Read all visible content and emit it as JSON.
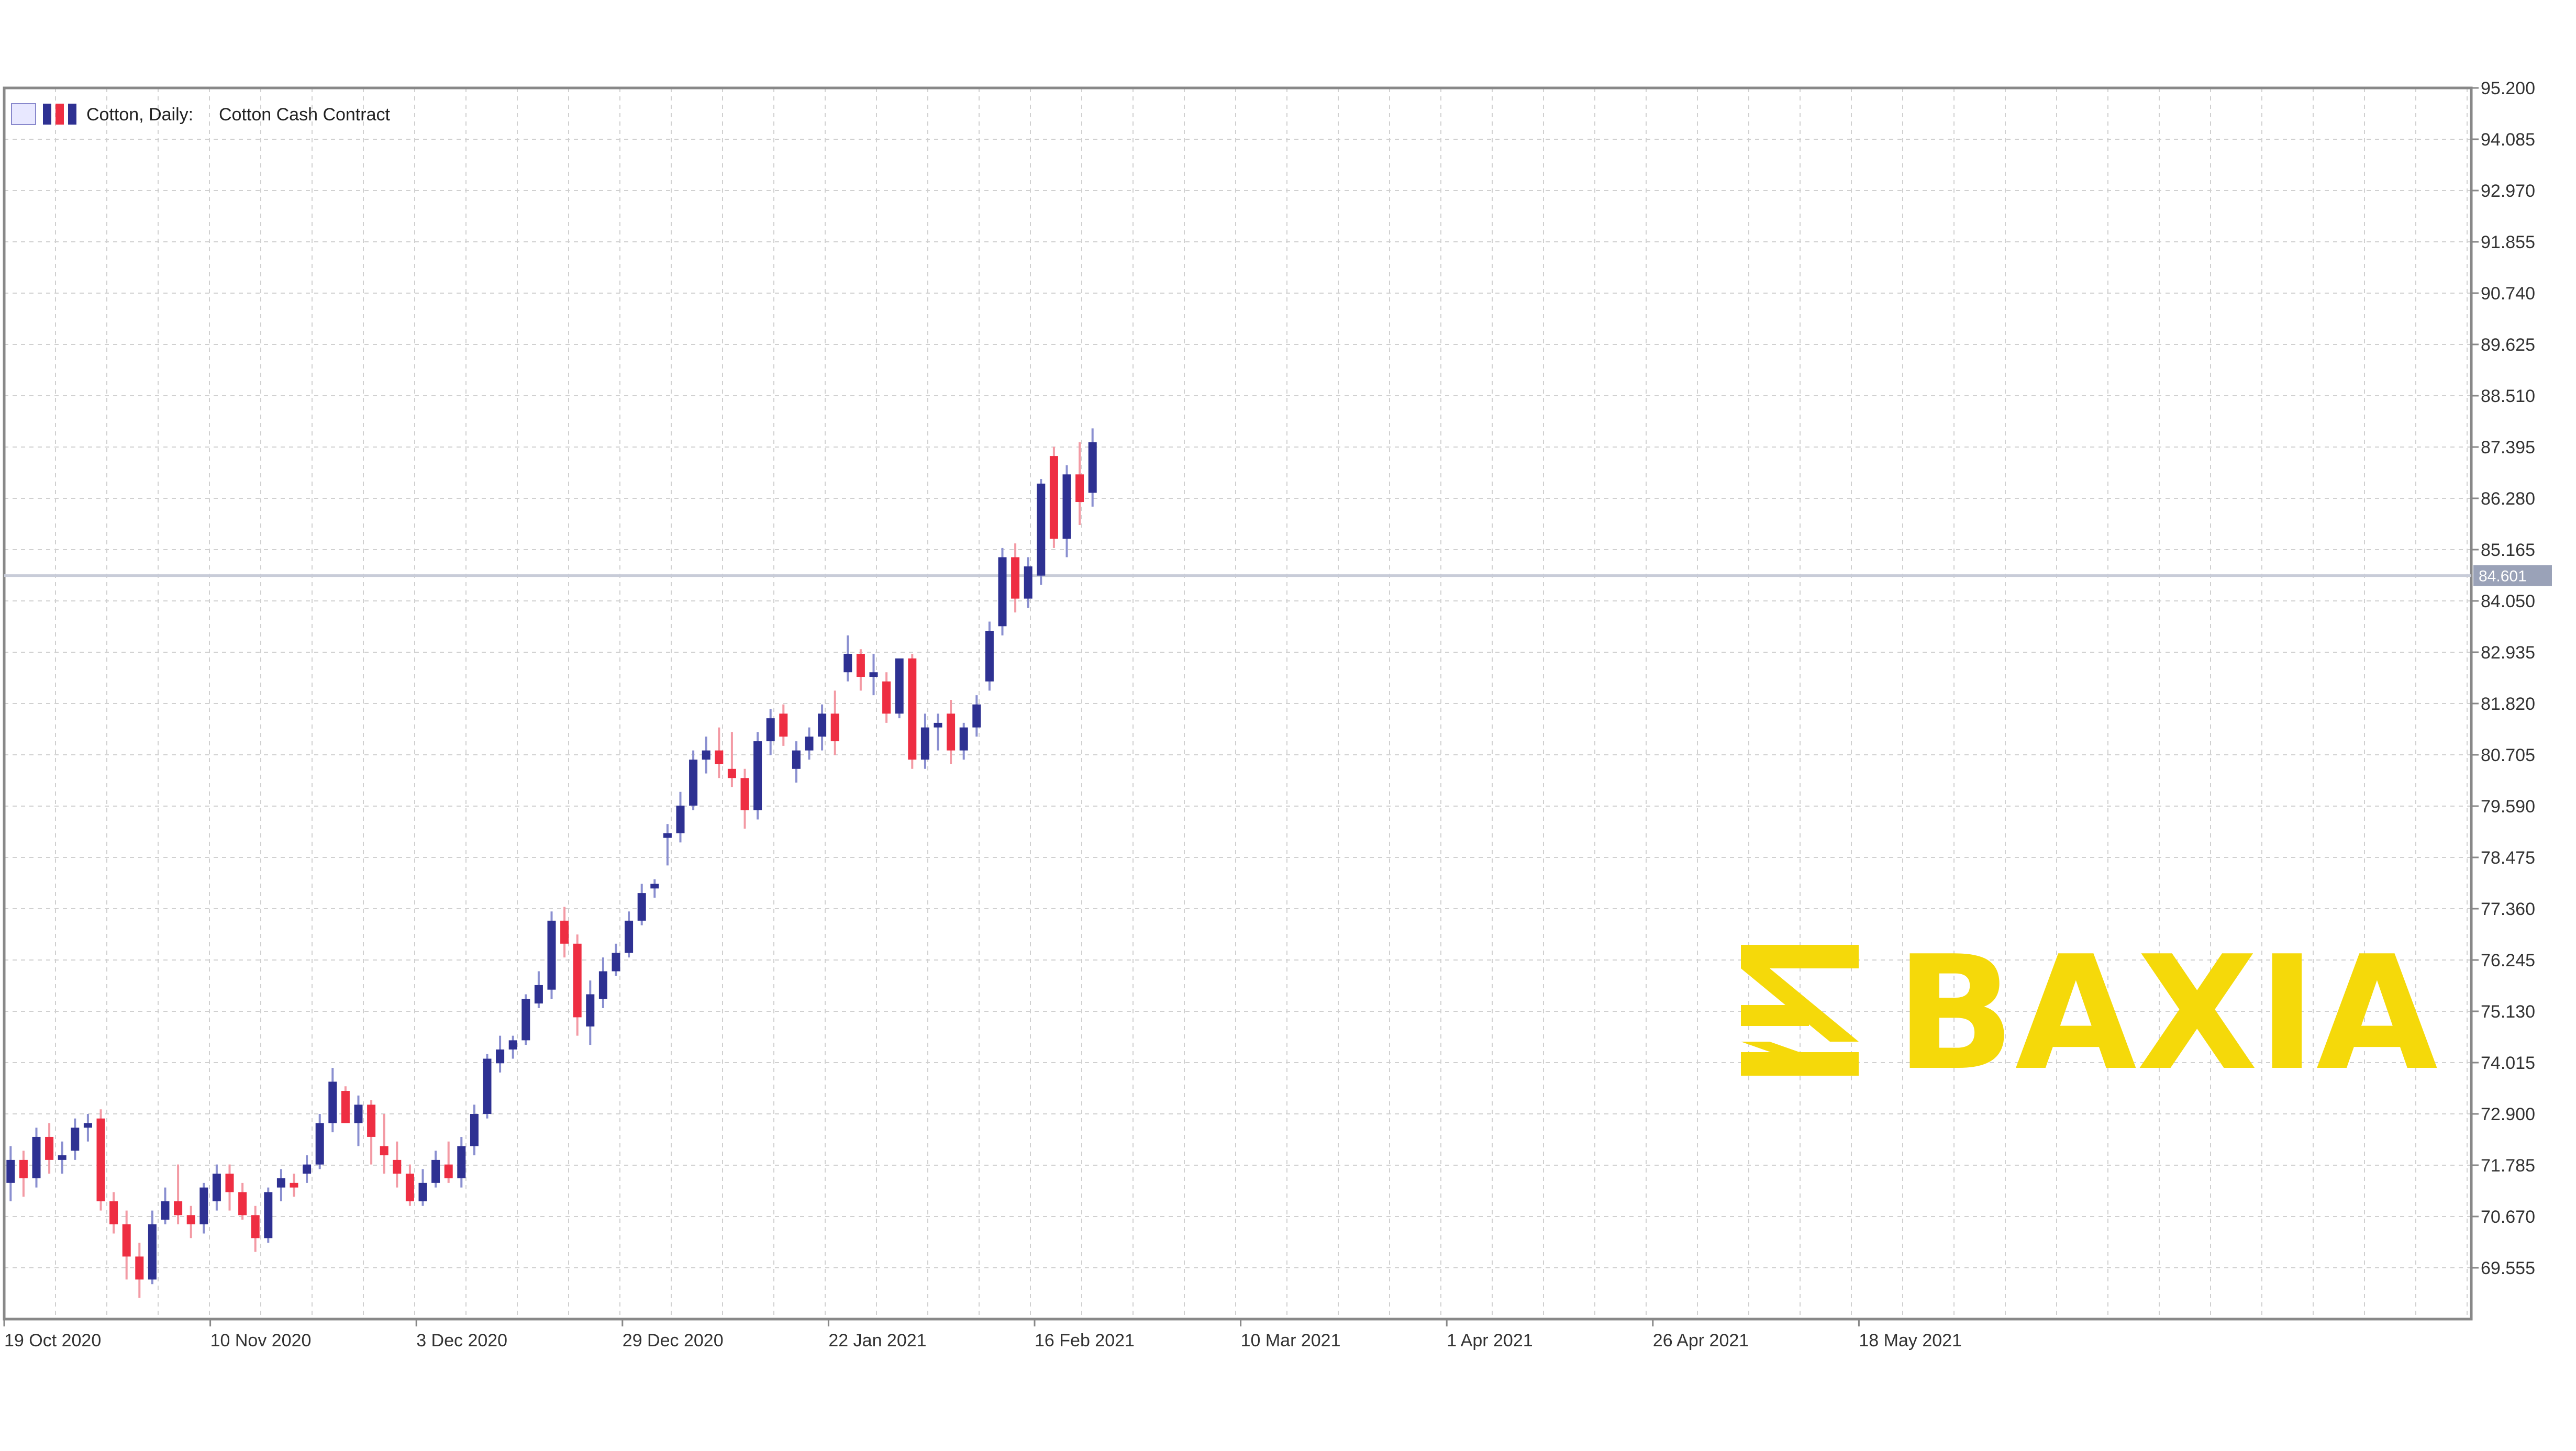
{
  "header": {
    "symbol_label": "Cotton, Daily:",
    "description": "Cotton Cash Contract"
  },
  "logo": {
    "text": "BAXIA",
    "icon": "baxia-logo-icon",
    "color": "#f5d90a"
  },
  "colors": {
    "bull": "#2e3192",
    "bear": "#ee2e42",
    "grid": "#d0d0d0",
    "axis": "#888888",
    "current_line": "#c8ccd8",
    "current_tag": "#9aa2b8"
  },
  "chart_data": {
    "type": "candlestick",
    "title": "Cotton, Daily: Cotton Cash Contract",
    "ylim": [
      68.5,
      95.2
    ],
    "y_ticks": [
      "95.200",
      "94.085",
      "92.970",
      "91.855",
      "90.740",
      "89.625",
      "88.510",
      "87.395",
      "86.280",
      "85.165",
      "84.050",
      "82.935",
      "81.820",
      "80.705",
      "79.590",
      "78.475",
      "77.360",
      "76.245",
      "75.130",
      "74.015",
      "72.900",
      "71.785",
      "70.670",
      "69.555"
    ],
    "x_labels": [
      {
        "label": "19 Oct 2020",
        "index": 0
      },
      {
        "label": "10 Nov 2020",
        "index": 16
      },
      {
        "label": "3 Dec 2020",
        "index": 32
      },
      {
        "label": "29 Dec 2020",
        "index": 48
      },
      {
        "label": "22 Jan 2021",
        "index": 64
      },
      {
        "label": "16 Feb 2021",
        "index": 80
      },
      {
        "label": "10 Mar 2021",
        "index": 96
      },
      {
        "label": "1 Apr 2021",
        "index": 112
      },
      {
        "label": "26 Apr 2021",
        "index": 128
      },
      {
        "label": "18 May 2021",
        "index": 144
      }
    ],
    "current_price": 84.601,
    "current_price_label": "84.601",
    "grid": true,
    "candles": [
      [
        71.4,
        72.2,
        71.0,
        71.9
      ],
      [
        71.9,
        72.1,
        71.1,
        71.5
      ],
      [
        71.5,
        72.6,
        71.3,
        72.4
      ],
      [
        72.4,
        72.7,
        71.6,
        71.9
      ],
      [
        71.9,
        72.3,
        71.6,
        72.0
      ],
      [
        72.1,
        72.8,
        71.9,
        72.6
      ],
      [
        72.6,
        72.9,
        72.3,
        72.7
      ],
      [
        72.8,
        73.0,
        70.8,
        71.0
      ],
      [
        71.0,
        71.2,
        70.3,
        70.5
      ],
      [
        70.5,
        70.8,
        69.3,
        69.8
      ],
      [
        69.8,
        70.1,
        68.9,
        69.3
      ],
      [
        69.3,
        70.8,
        69.2,
        70.5
      ],
      [
        70.6,
        71.3,
        70.5,
        71.0
      ],
      [
        71.0,
        71.8,
        70.5,
        70.7
      ],
      [
        70.7,
        70.9,
        70.2,
        70.5
      ],
      [
        70.5,
        71.4,
        70.3,
        71.3
      ],
      [
        71.0,
        71.8,
        70.8,
        71.6
      ],
      [
        71.6,
        71.8,
        70.8,
        71.2
      ],
      [
        71.2,
        71.4,
        70.6,
        70.7
      ],
      [
        70.7,
        70.9,
        69.9,
        70.2
      ],
      [
        70.2,
        71.3,
        70.1,
        71.2
      ],
      [
        71.3,
        71.7,
        71.0,
        71.5
      ],
      [
        71.4,
        71.6,
        71.1,
        71.3
      ],
      [
        71.6,
        72.0,
        71.4,
        71.8
      ],
      [
        71.8,
        72.9,
        71.7,
        72.7
      ],
      [
        72.7,
        73.9,
        72.5,
        73.6
      ],
      [
        73.4,
        73.5,
        72.8,
        72.7
      ],
      [
        72.7,
        73.3,
        72.2,
        73.1
      ],
      [
        73.1,
        73.2,
        71.8,
        72.4
      ],
      [
        72.2,
        72.9,
        71.6,
        72.0
      ],
      [
        71.9,
        72.3,
        71.3,
        71.6
      ],
      [
        71.6,
        71.8,
        70.9,
        71.0
      ],
      [
        71.0,
        71.7,
        70.9,
        71.4
      ],
      [
        71.4,
        72.1,
        71.3,
        71.9
      ],
      [
        71.8,
        72.3,
        71.4,
        71.5
      ],
      [
        71.5,
        72.4,
        71.3,
        72.2
      ],
      [
        72.2,
        73.1,
        72.0,
        72.9
      ],
      [
        72.9,
        74.2,
        72.8,
        74.1
      ],
      [
        74.0,
        74.6,
        73.8,
        74.3
      ],
      [
        74.3,
        74.6,
        74.1,
        74.5
      ],
      [
        74.5,
        75.5,
        74.4,
        75.4
      ],
      [
        75.3,
        76.0,
        75.2,
        75.7
      ],
      [
        75.6,
        77.3,
        75.4,
        77.1
      ],
      [
        77.1,
        77.4,
        76.3,
        76.6
      ],
      [
        76.6,
        76.8,
        74.6,
        75.0
      ],
      [
        74.8,
        75.8,
        74.4,
        75.5
      ],
      [
        75.4,
        76.3,
        75.2,
        76.0
      ],
      [
        76.0,
        76.6,
        75.9,
        76.4
      ],
      [
        76.4,
        77.3,
        76.3,
        77.1
      ],
      [
        77.1,
        77.9,
        77.0,
        77.7
      ],
      [
        77.8,
        78.0,
        77.6,
        77.9
      ],
      [
        78.9,
        79.2,
        78.3,
        79.0
      ],
      [
        79.0,
        79.9,
        78.8,
        79.6
      ],
      [
        79.6,
        80.8,
        79.5,
        80.6
      ],
      [
        80.6,
        81.1,
        80.3,
        80.8
      ],
      [
        80.8,
        81.3,
        80.2,
        80.5
      ],
      [
        80.4,
        81.2,
        80.0,
        80.2
      ],
      [
        80.2,
        80.4,
        79.1,
        79.5
      ],
      [
        79.5,
        81.2,
        79.3,
        81.0
      ],
      [
        81.0,
        81.7,
        80.7,
        81.5
      ],
      [
        81.6,
        81.8,
        80.9,
        81.1
      ],
      [
        80.4,
        81.0,
        80.1,
        80.8
      ],
      [
        80.8,
        81.3,
        80.6,
        81.1
      ],
      [
        81.1,
        81.8,
        80.8,
        81.6
      ],
      [
        81.6,
        82.1,
        80.7,
        81.0
      ],
      [
        82.5,
        83.3,
        82.3,
        82.9
      ],
      [
        82.9,
        83.0,
        82.1,
        82.4
      ],
      [
        82.4,
        82.9,
        82.0,
        82.5
      ],
      [
        82.3,
        82.5,
        81.4,
        81.6
      ],
      [
        81.6,
        82.7,
        81.5,
        82.8
      ],
      [
        82.8,
        82.9,
        80.4,
        80.6
      ],
      [
        80.6,
        81.6,
        80.4,
        81.3
      ],
      [
        81.3,
        81.6,
        80.8,
        81.4
      ],
      [
        81.6,
        81.9,
        80.5,
        80.8
      ],
      [
        80.8,
        81.4,
        80.6,
        81.3
      ],
      [
        81.3,
        82.0,
        81.1,
        81.8
      ],
      [
        82.3,
        83.6,
        82.1,
        83.4
      ],
      [
        83.5,
        85.2,
        83.3,
        85.0
      ],
      [
        85.0,
        85.3,
        83.8,
        84.1
      ],
      [
        84.1,
        85.0,
        83.9,
        84.8
      ],
      [
        84.6,
        86.7,
        84.4,
        86.6
      ],
      [
        87.2,
        87.4,
        85.2,
        85.4
      ],
      [
        85.4,
        87.0,
        85.0,
        86.8
      ],
      [
        86.8,
        87.5,
        85.7,
        86.2
      ],
      [
        86.4,
        87.8,
        86.1,
        87.5
      ]
    ]
  }
}
